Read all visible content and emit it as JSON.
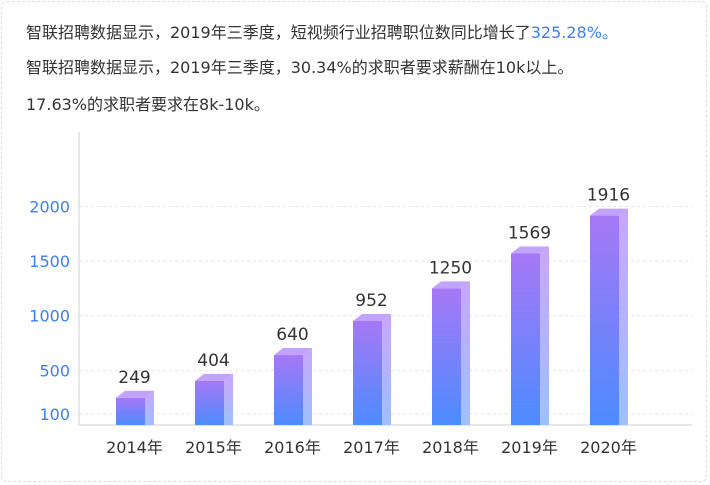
{
  "text": {
    "line1_prefix": "智联招聘数据显示，2019年三季度，短视频行业招聘职位数同比增长了",
    "line1_highlight": "325.28%。",
    "line2": "智联招聘数据显示，2019年三季度，30.34%的求职者要求薪酬在10k以上。",
    "line3": "17.63%的求职者要求在8k-10k。"
  },
  "colors": {
    "highlight": "#3b7ff6",
    "y_tick_text": "#3b7ff6",
    "bar_top": "#a678f5",
    "bar_bottom": "#4d8bff",
    "bar_side_top": "#c9a6fb",
    "bar_side_bottom": "#9ec0ff",
    "bar_cap": "#c2a3fa"
  },
  "chart_data": {
    "type": "bar",
    "categories": [
      "2014年",
      "2015年",
      "2016年",
      "2017年",
      "2018年",
      "2019年",
      "2020年"
    ],
    "values": [
      249,
      404,
      640,
      952,
      1250,
      1569,
      1916
    ],
    "data_labels": [
      "249",
      "404",
      "640",
      "952",
      "1250",
      "1569",
      "1916"
    ],
    "y_ticks": [
      100,
      500,
      1000,
      1500,
      2000
    ],
    "ylim": [
      0,
      2300
    ],
    "grid": true,
    "style": "3d-column"
  }
}
